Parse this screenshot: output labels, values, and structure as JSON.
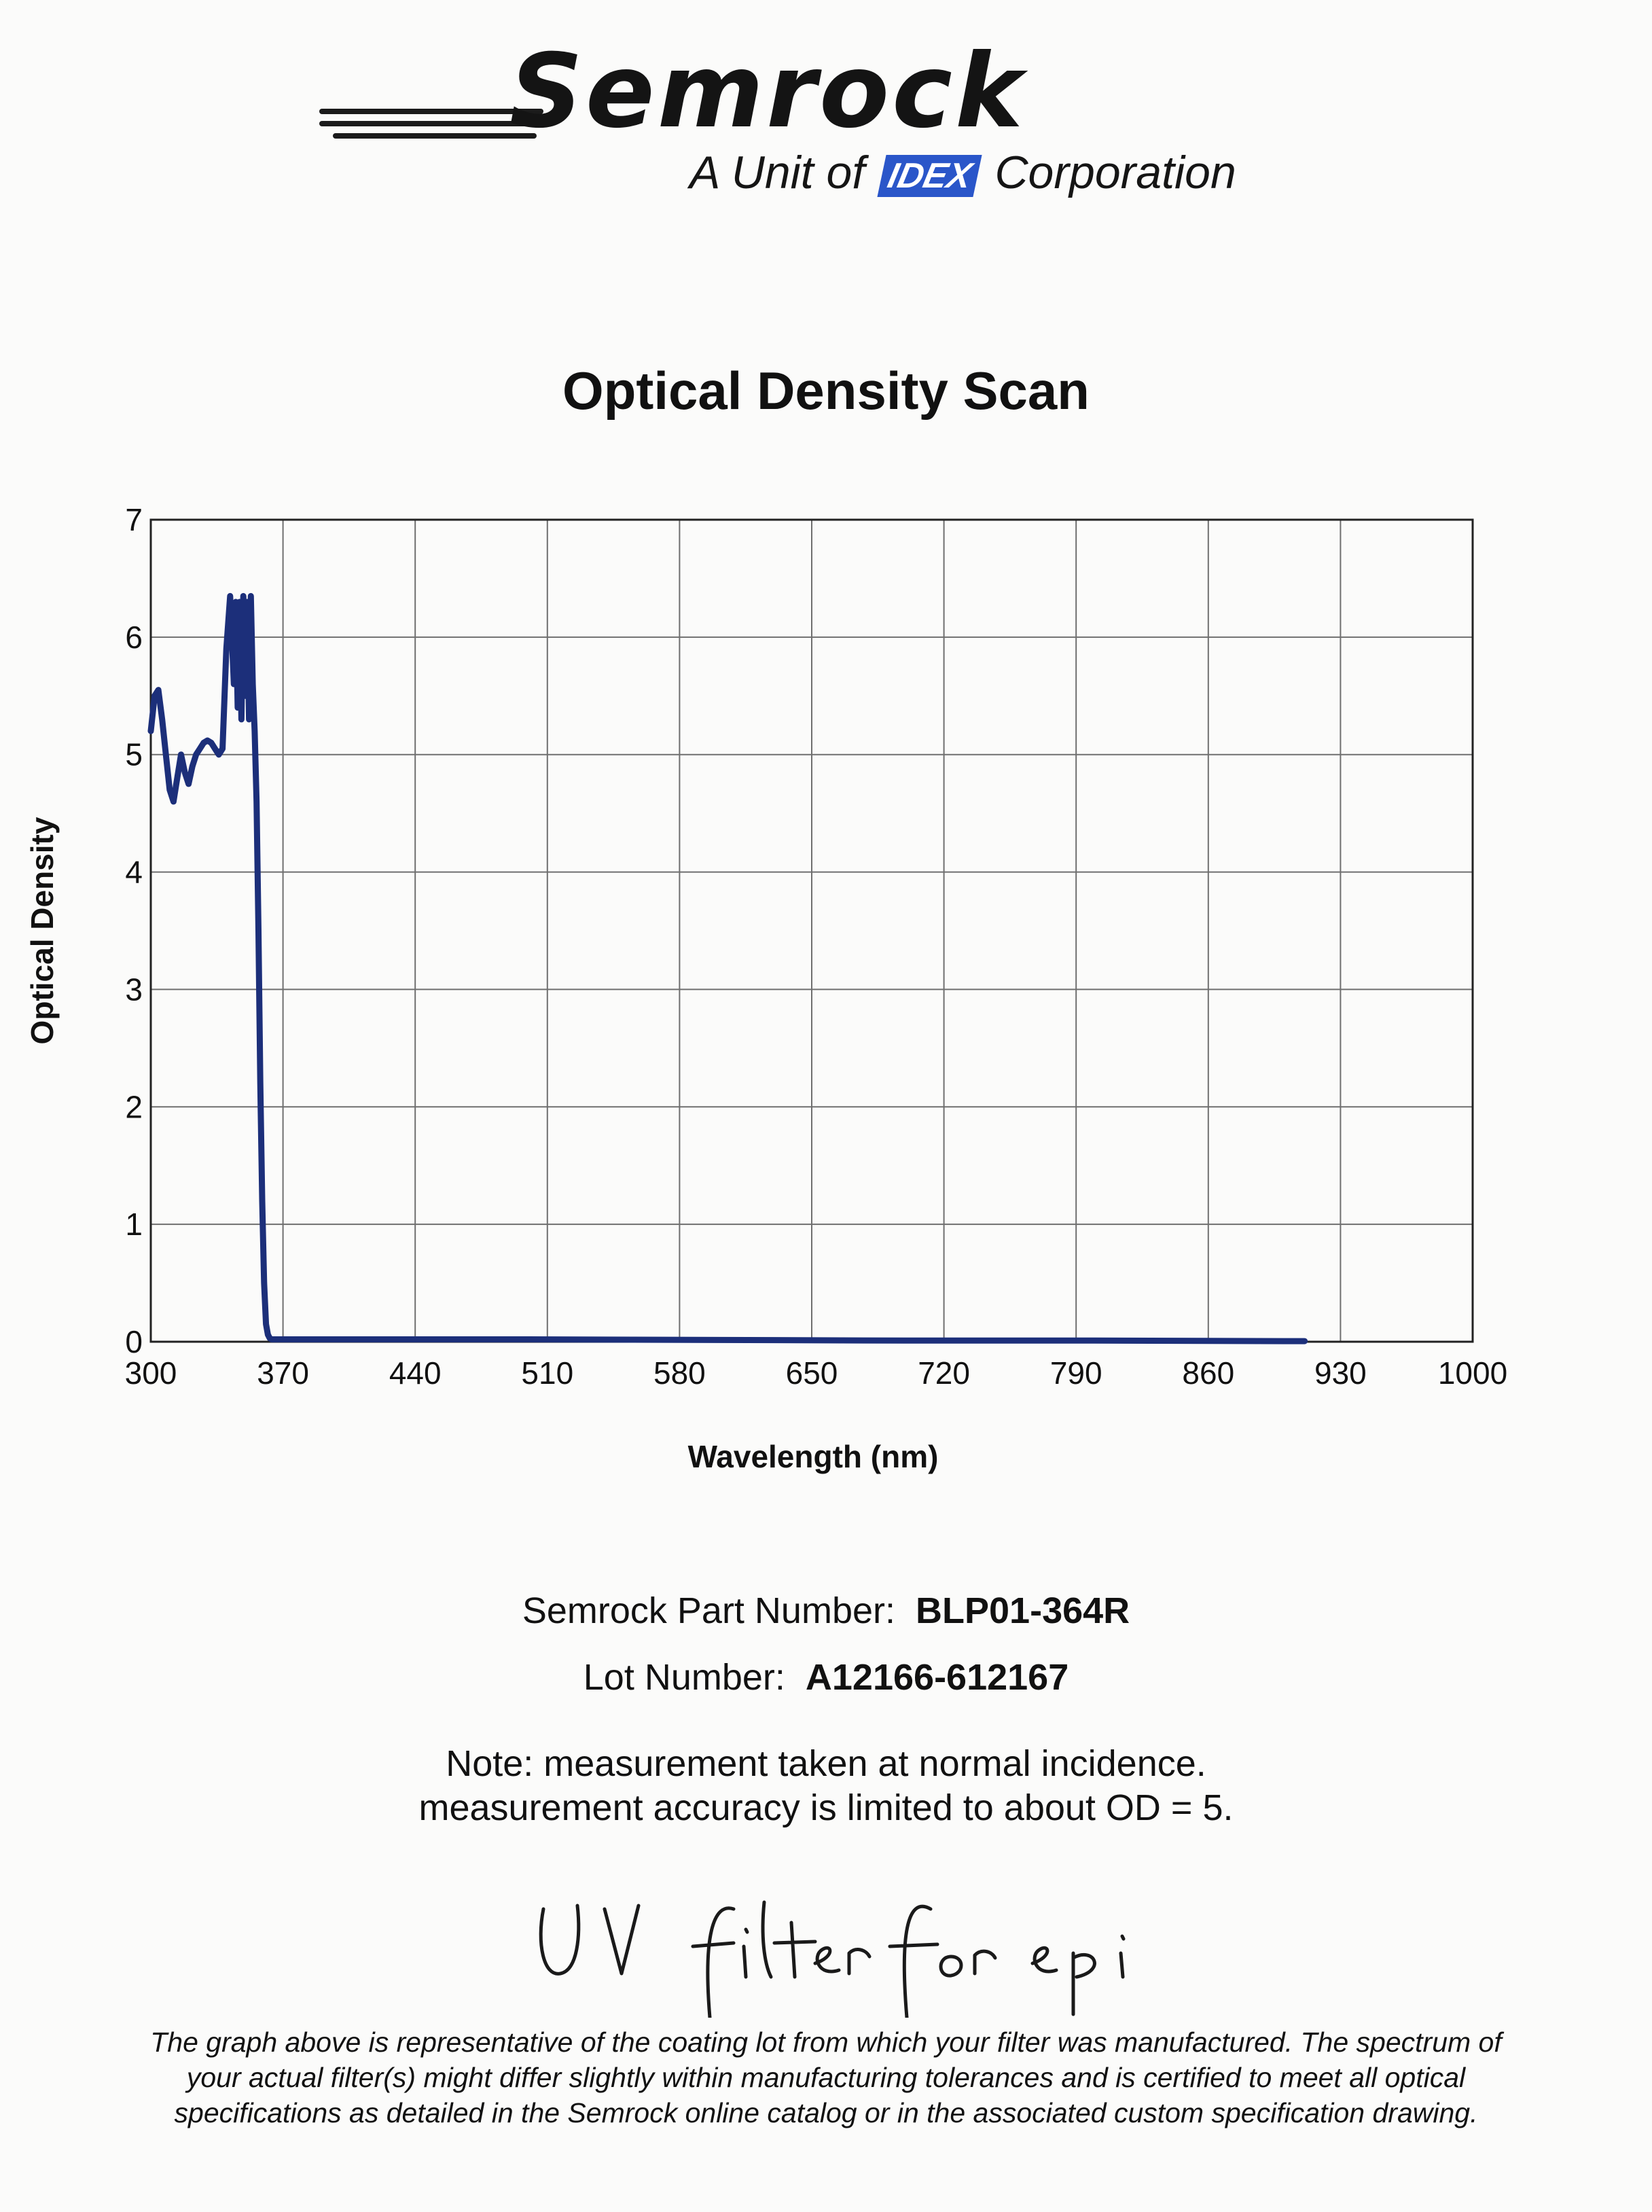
{
  "logo": {
    "brand": "Semrock",
    "unit_prefix": "A Unit of",
    "unit_brand": "IDEX",
    "unit_suffix": "Corporation",
    "colors": {
      "brand_text": "#141414",
      "idex_blue": "#2a56c9"
    }
  },
  "chart_data": {
    "type": "line",
    "title": "Optical Density Scan",
    "xlabel": "Wavelength (nm)",
    "ylabel": "Optical Density",
    "xlim": [
      300,
      1000
    ],
    "ylim": [
      0,
      7
    ],
    "x_ticks": [
      300,
      370,
      440,
      510,
      580,
      650,
      720,
      790,
      860,
      930,
      1000
    ],
    "y_ticks": [
      0,
      1,
      2,
      3,
      4,
      5,
      6,
      7
    ],
    "grid": true,
    "line_color": "#1c2f7a",
    "series": [
      {
        "x": [
          300,
          302,
          304,
          306,
          308,
          310,
          312,
          314,
          316,
          318,
          320,
          322,
          324,
          326,
          328,
          330,
          332,
          334,
          336,
          338,
          340,
          342,
          344,
          345,
          346,
          347,
          348,
          349,
          350,
          351,
          352,
          353,
          354,
          355,
          356,
          357,
          358,
          359,
          360,
          361,
          362,
          363,
          364,
          365,
          366,
          370,
          400,
          500,
          600,
          700,
          800,
          900,
          911
        ],
        "y": [
          5.2,
          5.5,
          5.55,
          5.3,
          5.0,
          4.7,
          4.6,
          4.8,
          5.0,
          4.85,
          4.75,
          4.9,
          5.0,
          5.05,
          5.1,
          5.12,
          5.1,
          5.05,
          5.0,
          5.05,
          5.9,
          6.35,
          5.6,
          6.3,
          5.4,
          6.3,
          5.3,
          6.35,
          5.5,
          6.3,
          5.3,
          6.35,
          5.6,
          5.2,
          4.6,
          3.5,
          2.2,
          1.2,
          0.5,
          0.15,
          0.06,
          0.03,
          0.02,
          0.02,
          0.02,
          0.02,
          0.02,
          0.02,
          0.015,
          0.01,
          0.01,
          0.005,
          0.005
        ]
      }
    ]
  },
  "part_number": {
    "label": "Semrock Part Number:",
    "value": "BLP01-364R"
  },
  "lot_number": {
    "label": "Lot Number:",
    "value": "A12166-612167"
  },
  "notes": {
    "line1": "Note:  measurement taken at normal incidence.",
    "line2": "measurement accuracy is limited to about OD = 5."
  },
  "handwritten_note": "UV filter for epi",
  "disclaimer": {
    "line1": "The graph above is representative of the coating lot from which your filter was manufactured.  The spectrum of",
    "line2": "your actual filter(s) might differ slightly within manufacturing tolerances and is certified to meet all optical",
    "line3": "specifications as detailed in the Semrock online catalog or in the associated custom specification drawing."
  }
}
